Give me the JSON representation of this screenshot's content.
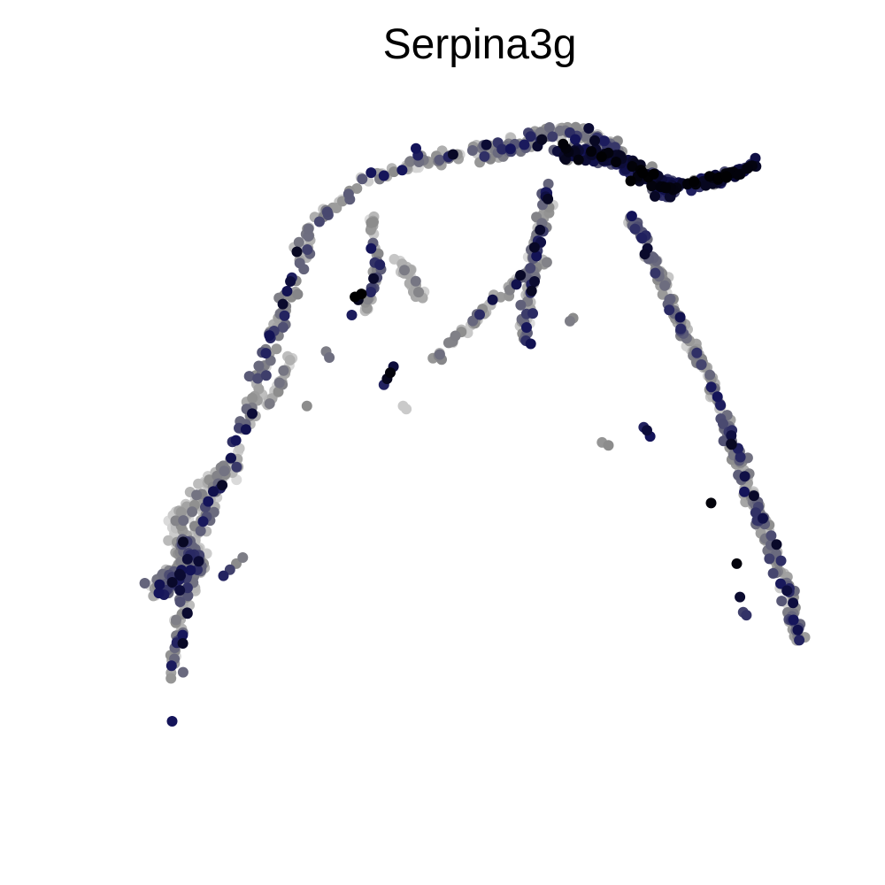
{
  "chart_data": {
    "type": "scatter",
    "title": "Serpina3g",
    "xlabel": "",
    "ylabel": "",
    "xlim": [
      0,
      1
    ],
    "ylim": [
      0,
      1
    ],
    "axes_visible": false,
    "grid": false,
    "legend": "none",
    "color_scale": {
      "low": "#dcdcdc",
      "mid": "#8c8c8c",
      "high": "#14145a",
      "max": "#000000"
    },
    "segments": [
      {
        "name": "left-branch",
        "path": [
          [
            0.02,
            0.08
          ],
          [
            0.05,
            0.27
          ],
          [
            0.07,
            0.33
          ],
          [
            0.12,
            0.45
          ],
          [
            0.15,
            0.55
          ],
          [
            0.2,
            0.7
          ],
          [
            0.24,
            0.82
          ],
          [
            0.33,
            0.9
          ],
          [
            0.43,
            0.93
          ],
          [
            0.52,
            0.95
          ]
        ],
        "spread": 0.018,
        "count": 260,
        "mode": "mixed"
      },
      {
        "name": "left-blob",
        "path": [
          [
            0.0,
            0.22
          ],
          [
            0.06,
            0.26
          ],
          [
            0.03,
            0.3
          ]
        ],
        "spread": 0.03,
        "count": 170,
        "mode": "mixed"
      },
      {
        "name": "left-blob-fringe",
        "path": [
          [
            0.02,
            0.32
          ],
          [
            0.11,
            0.42
          ]
        ],
        "spread": 0.022,
        "count": 70,
        "mode": "light"
      },
      {
        "name": "peak",
        "path": [
          [
            0.5,
            0.93
          ],
          [
            0.56,
            0.95
          ],
          [
            0.6,
            0.97
          ],
          [
            0.66,
            0.97
          ],
          [
            0.72,
            0.94
          ]
        ],
        "spread": 0.02,
        "count": 140,
        "mode": "mixed"
      },
      {
        "name": "top-hotspot",
        "path": [
          [
            0.62,
            0.94
          ],
          [
            0.7,
            0.93
          ],
          [
            0.76,
            0.9
          ],
          [
            0.8,
            0.87
          ]
        ],
        "spread": 0.02,
        "count": 170,
        "mode": "high"
      },
      {
        "name": "right-arm",
        "path": [
          [
            0.78,
            0.88
          ],
          [
            0.86,
            0.89
          ],
          [
            0.93,
            0.92
          ]
        ],
        "spread": 0.012,
        "count": 110,
        "mode": "high"
      },
      {
        "name": "right-branch-upper",
        "path": [
          [
            0.73,
            0.84
          ],
          [
            0.77,
            0.76
          ],
          [
            0.8,
            0.68
          ],
          [
            0.85,
            0.58
          ],
          [
            0.88,
            0.5
          ]
        ],
        "spread": 0.012,
        "count": 140,
        "mode": "mixed"
      },
      {
        "name": "right-branch-lower",
        "path": [
          [
            0.88,
            0.5
          ],
          [
            0.92,
            0.38
          ],
          [
            0.95,
            0.3
          ],
          [
            0.98,
            0.2
          ],
          [
            1.0,
            0.13
          ]
        ],
        "spread": 0.016,
        "count": 200,
        "mode": "mixed"
      },
      {
        "name": "inner-stem",
        "path": [
          [
            0.33,
            0.83
          ],
          [
            0.34,
            0.74
          ],
          [
            0.32,
            0.67
          ]
        ],
        "spread": 0.01,
        "count": 40,
        "mode": "mixed"
      },
      {
        "name": "inner-light",
        "path": [
          [
            0.37,
            0.76
          ],
          [
            0.41,
            0.7
          ]
        ],
        "spread": 0.012,
        "count": 30,
        "mode": "light"
      },
      {
        "name": "center-drop",
        "path": [
          [
            0.61,
            0.88
          ],
          [
            0.59,
            0.8
          ],
          [
            0.58,
            0.72
          ],
          [
            0.57,
            0.62
          ]
        ],
        "spread": 0.015,
        "count": 90,
        "mode": "mixed"
      },
      {
        "name": "center-diagonal",
        "path": [
          [
            0.6,
            0.76
          ],
          [
            0.55,
            0.72
          ],
          [
            0.48,
            0.65
          ],
          [
            0.43,
            0.6
          ]
        ],
        "spread": 0.01,
        "count": 55,
        "mode": "mixed"
      },
      {
        "name": "left-inner-line",
        "path": [
          [
            0.17,
            0.52
          ],
          [
            0.19,
            0.56
          ],
          [
            0.21,
            0.61
          ]
        ],
        "spread": 0.008,
        "count": 25,
        "mode": "light"
      }
    ],
    "extras": [
      {
        "x": 0.305,
        "y": 0.7,
        "v": 1.0
      },
      {
        "x": 0.315,
        "y": 0.705,
        "v": 1.0
      },
      {
        "x": 0.31,
        "y": 0.695,
        "v": 0.95
      },
      {
        "x": 0.33,
        "y": 0.78,
        "v": 0.85
      },
      {
        "x": 0.3,
        "y": 0.67,
        "v": 0.82
      },
      {
        "x": 0.355,
        "y": 0.565,
        "v": 0.95
      },
      {
        "x": 0.36,
        "y": 0.575,
        "v": 0.98
      },
      {
        "x": 0.365,
        "y": 0.585,
        "v": 0.9
      },
      {
        "x": 0.35,
        "y": 0.555,
        "v": 0.8
      },
      {
        "x": 0.26,
        "y": 0.61,
        "v": 0.5
      },
      {
        "x": 0.265,
        "y": 0.6,
        "v": 0.55
      },
      {
        "x": 0.23,
        "y": 0.52,
        "v": 0.45
      },
      {
        "x": 0.38,
        "y": 0.52,
        "v": 0.1
      },
      {
        "x": 0.385,
        "y": 0.515,
        "v": 0.1
      },
      {
        "x": 0.64,
        "y": 0.66,
        "v": 0.5
      },
      {
        "x": 0.645,
        "y": 0.665,
        "v": 0.45
      },
      {
        "x": 0.69,
        "y": 0.46,
        "v": 0.4
      },
      {
        "x": 0.7,
        "y": 0.455,
        "v": 0.45
      },
      {
        "x": 0.76,
        "y": 0.48,
        "v": 0.9
      },
      {
        "x": 0.765,
        "y": 0.47,
        "v": 0.85
      },
      {
        "x": 0.755,
        "y": 0.485,
        "v": 0.8
      },
      {
        "x": 0.98,
        "y": 0.22,
        "v": 0.6
      },
      {
        "x": 0.99,
        "y": 0.215,
        "v": 0.55
      },
      {
        "x": 0.91,
        "y": 0.18,
        "v": 0.7
      },
      {
        "x": 0.915,
        "y": 0.175,
        "v": 0.75
      },
      {
        "x": 0.905,
        "y": 0.205,
        "v": 0.92
      },
      {
        "x": 0.9,
        "y": 0.26,
        "v": 0.98
      },
      {
        "x": 0.86,
        "y": 0.36,
        "v": 0.98
      },
      {
        "x": 0.35,
        "y": 0.9,
        "v": 0.85
      },
      {
        "x": 0.4,
        "y": 0.945,
        "v": 0.85
      },
      {
        "x": 0.33,
        "y": 0.905,
        "v": 0.85
      },
      {
        "x": 0.02,
        "y": 0.0,
        "v": 0.85
      },
      {
        "x": 0.1,
        "y": 0.24,
        "v": 0.8
      },
      {
        "x": 0.11,
        "y": 0.25,
        "v": 0.7
      },
      {
        "x": 0.13,
        "y": 0.27,
        "v": 0.5
      },
      {
        "x": 0.12,
        "y": 0.26,
        "v": 0.45
      }
    ]
  }
}
